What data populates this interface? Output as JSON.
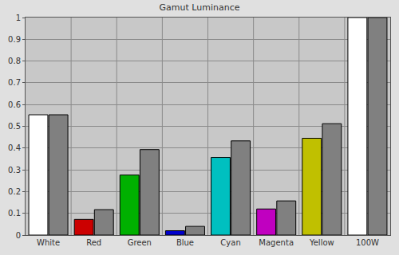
{
  "chart_data": {
    "type": "bar",
    "title": "Gamut Luminance",
    "categories": [
      "White",
      "Red",
      "Green",
      "Blue",
      "Cyan",
      "Magenta",
      "Yellow",
      "100W"
    ],
    "series": [
      {
        "colors": [
          "#ffffff",
          "#cc0000",
          "#00b000",
          "#0000cc",
          "#00c0c0",
          "#c000c0",
          "#c0c000",
          "#ffffff"
        ],
        "values": [
          0.553,
          0.072,
          0.276,
          0.02,
          0.357,
          0.12,
          0.445,
          1.0
        ]
      },
      {
        "color": "#808080",
        "values": [
          0.553,
          0.117,
          0.393,
          0.04,
          0.433,
          0.157,
          0.512,
          1.0
        ]
      }
    ],
    "ylim": [
      0,
      1
    ],
    "yticks": [
      0,
      0.1,
      0.2,
      0.3,
      0.4,
      0.5,
      0.6,
      0.7,
      0.8,
      0.9,
      1
    ],
    "grid": true
  }
}
